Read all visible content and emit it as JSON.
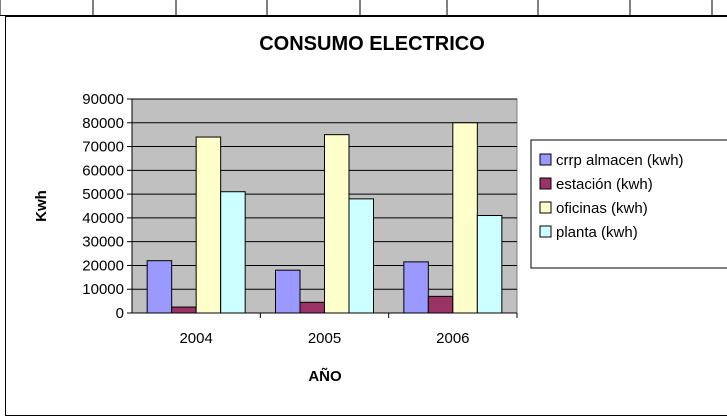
{
  "colors": {
    "plot_bg": "#c0c0c0",
    "grid": "#000000",
    "series": [
      "#9999ff",
      "#993366",
      "#ffffcc",
      "#ccffff"
    ]
  },
  "chart_data": {
    "type": "bar",
    "title": "CONSUMO ELECTRICO",
    "xlabel": "AÑO",
    "ylabel": "Kwh",
    "categories": [
      "2004",
      "2005",
      "2006"
    ],
    "ylim": [
      0,
      90000
    ],
    "yticks": [
      "0",
      "10000",
      "20000",
      "30000",
      "40000",
      "50000",
      "60000",
      "70000",
      "80000",
      "90000"
    ],
    "grid": true,
    "legend_position": "right",
    "series": [
      {
        "name": "crrp almacen (kwh)",
        "values": [
          22000,
          18000,
          21500
        ]
      },
      {
        "name": "estación (kwh)",
        "values": [
          2500,
          4500,
          7000
        ]
      },
      {
        "name": "oficinas (kwh)",
        "values": [
          74000,
          75000,
          80000
        ]
      },
      {
        "name": "planta (kwh)",
        "values": [
          51000,
          48000,
          41000
        ]
      }
    ]
  }
}
